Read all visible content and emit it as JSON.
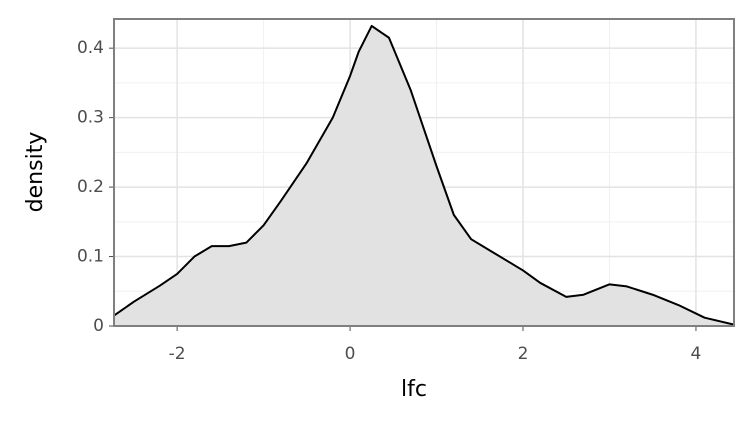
{
  "chart_data": {
    "type": "area",
    "x_label": "lfc",
    "y_label": "density",
    "x": [
      -2.73,
      -2.5,
      -2.2,
      -2.0,
      -1.8,
      -1.6,
      -1.4,
      -1.2,
      -1.0,
      -0.8,
      -0.5,
      -0.2,
      0.0,
      0.1,
      0.25,
      0.45,
      0.7,
      1.0,
      1.2,
      1.4,
      1.6,
      2.0,
      2.2,
      2.5,
      2.7,
      3.0,
      3.2,
      3.5,
      3.8,
      4.1,
      4.44
    ],
    "values": [
      0.015,
      0.035,
      0.058,
      0.075,
      0.1,
      0.115,
      0.115,
      0.12,
      0.145,
      0.18,
      0.235,
      0.3,
      0.36,
      0.395,
      0.432,
      0.415,
      0.34,
      0.23,
      0.16,
      0.125,
      0.11,
      0.08,
      0.062,
      0.042,
      0.045,
      0.06,
      0.057,
      0.045,
      0.03,
      0.012,
      0.002
    ],
    "color": "#e2e2e2",
    "line_color": "#000000",
    "xlim": [
      -2.73,
      4.44
    ],
    "xticks": [
      -2,
      0,
      2,
      4
    ],
    "xminorticks": [
      -1,
      1,
      3
    ],
    "ylim": [
      0,
      0.442
    ],
    "yticks": [
      0,
      0.1,
      0.2,
      0.3,
      0.4
    ],
    "yminorticks": [
      0.05,
      0.15,
      0.25,
      0.35
    ],
    "grid": true
  }
}
